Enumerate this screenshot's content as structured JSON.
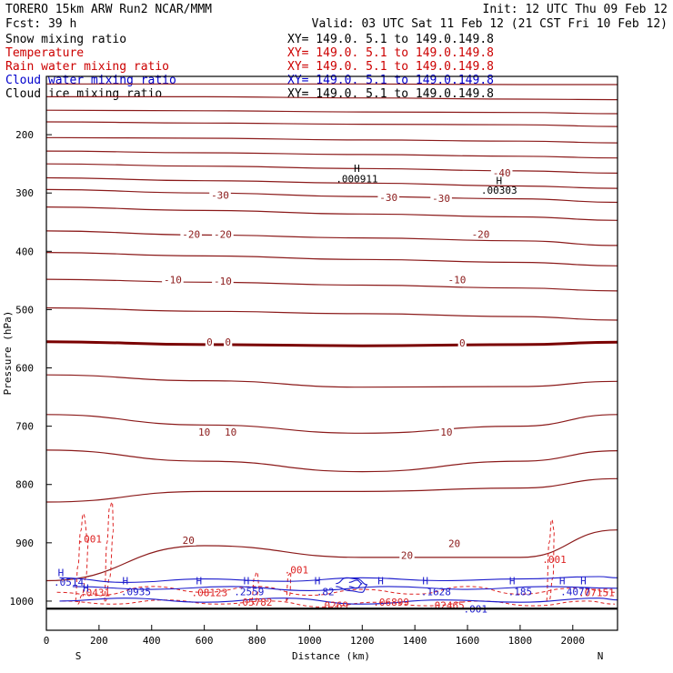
{
  "header": {
    "line1_left": "TORERO  15km ARW   Run2    NCAR/MMM",
    "line1_right": "Init: 12 UTC Thu 09 Feb 12",
    "line2_left": "Fcst:   39 h",
    "line2_right": "Valid: 03 UTC Sat 11 Feb 12 (21 CST Fri 10 Feb 12)"
  },
  "legend": [
    {
      "label": "Snow mixing ratio",
      "xy": "XY= 149.0.  5.1 to 149.0.149.8",
      "color": "#000000"
    },
    {
      "label": "Temperature",
      "xy": "XY= 149.0.  5.1 to 149.0.149.8",
      "color": "#cc0000"
    },
    {
      "label": "Rain water mixing ratio",
      "xy": "XY= 149.0.  5.1 to 149.0.149.8",
      "color": "#cc0000"
    },
    {
      "label": "Cloud water mixing ratio",
      "xy": "XY= 149.0.  5.1 to 149.0.149.8",
      "color": "#0000cc"
    },
    {
      "label": "Cloud ice mixing ratio",
      "xy": "XY= 149.0.  5.1 to 149.0.149.8",
      "color": "#000000"
    }
  ],
  "colors": {
    "temperature": "#8b1a1a",
    "freezing_line": "#7a0000",
    "rain": "#dd2222",
    "cloud_water": "#1a1acc",
    "ice": "#000000",
    "frame": "#000000"
  },
  "chart_data": {
    "type": "contour",
    "xlabel": "Distance (km)",
    "ylabel": "Pressure (hPa)",
    "xlim": [
      0,
      2170
    ],
    "ylim": [
      1050,
      100
    ],
    "x_ticks": [
      0,
      200,
      400,
      600,
      800,
      1000,
      1200,
      1400,
      1600,
      1800,
      2000
    ],
    "y_ticks": [
      200,
      300,
      400,
      500,
      600,
      700,
      800,
      900,
      1000
    ],
    "x_ends": {
      "left": "S",
      "right": "N"
    },
    "temperature_lines": [
      {
        "x": [
          0,
          600,
          1200,
          1800,
          2170
        ],
        "p": [
          113,
          113,
          113,
          114,
          114
        ]
      },
      {
        "x": [
          0,
          600,
          1200,
          1800,
          2170
        ],
        "p": [
          135,
          135,
          137,
          139,
          140
        ]
      },
      {
        "x": [
          0,
          600,
          1200,
          1800,
          2170
        ],
        "p": [
          158,
          159,
          161,
          162,
          164
        ]
      },
      {
        "x": [
          0,
          600,
          1200,
          1800,
          2170
        ],
        "p": [
          178,
          180,
          182,
          183,
          186
        ]
      },
      {
        "x": [
          0,
          600,
          1200,
          1800,
          2170
        ],
        "p": [
          205,
          206,
          209,
          211,
          214
        ]
      },
      {
        "x": [
          0,
          600,
          1200,
          1800,
          2170
        ],
        "p": [
          228,
          231,
          234,
          237,
          240
        ]
      },
      {
        "x": [
          0,
          600,
          1200,
          1800,
          2170
        ],
        "p": [
          250,
          254,
          258,
          262,
          266
        ]
      },
      {
        "x": [
          0,
          600,
          1200,
          1800,
          2170
        ],
        "p": [
          274,
          279,
          283,
          288,
          292
        ]
      },
      {
        "x": [
          0,
          600,
          1200,
          1800,
          2170
        ],
        "p": [
          294,
          300,
          306,
          310,
          316
        ]
      },
      {
        "x": [
          0,
          600,
          1200,
          1800,
          2170
        ],
        "p": [
          324,
          330,
          336,
          341,
          347
        ]
      },
      {
        "x": [
          0,
          600,
          1200,
          1800,
          2170
        ],
        "p": [
          365,
          372,
          377,
          382,
          390
        ]
      },
      {
        "x": [
          0,
          600,
          1200,
          1800,
          2170
        ],
        "p": [
          402,
          408,
          414,
          419,
          425
        ]
      },
      {
        "x": [
          0,
          600,
          1200,
          1800,
          2170
        ],
        "p": [
          448,
          453,
          458,
          463,
          468
        ]
      },
      {
        "x": [
          0,
          600,
          1200,
          1800,
          2170
        ],
        "p": [
          497,
          503,
          507,
          512,
          518
        ]
      },
      {
        "x": [
          0,
          600,
          1200,
          1800,
          2170
        ],
        "p": [
          555,
          560,
          562,
          560,
          556
        ]
      },
      {
        "x": [
          0,
          600,
          1200,
          1800,
          2170
        ],
        "p": [
          612,
          622,
          633,
          632,
          623
        ]
      },
      {
        "x": [
          0,
          600,
          1200,
          1800,
          2170
        ],
        "p": [
          680,
          698,
          712,
          700,
          680
        ]
      },
      {
        "x": [
          0,
          600,
          1200,
          1800,
          2170
        ],
        "p": [
          741,
          760,
          778,
          760,
          742
        ]
      },
      {
        "x": [
          0,
          600,
          1200,
          1800,
          2170
        ],
        "p": [
          830,
          812,
          812,
          806,
          790
        ]
      },
      {
        "x": [
          0,
          600,
          1200,
          1800,
          2170
        ],
        "p": [
          965,
          905,
          925,
          925,
          878
        ]
      }
    ],
    "freezing_line_index": 14,
    "temperature_labels": [
      {
        "text": "-40",
        "x": 1730,
        "p": 270
      },
      {
        "text": "-30",
        "x": 660,
        "p": 308
      },
      {
        "text": "-30",
        "x": 1300,
        "p": 312
      },
      {
        "text": "-30",
        "x": 1500,
        "p": 314
      },
      {
        "text": "-20",
        "x": 550,
        "p": 375
      },
      {
        "text": "-20",
        "x": 670,
        "p": 375
      },
      {
        "text": "-20",
        "x": 1650,
        "p": 375
      },
      {
        "text": "-10",
        "x": 480,
        "p": 453
      },
      {
        "text": "-10",
        "x": 670,
        "p": 456
      },
      {
        "text": "-10",
        "x": 1560,
        "p": 453
      },
      {
        "text": "0",
        "x": 620,
        "p": 560
      },
      {
        "text": "0",
        "x": 690,
        "p": 560
      },
      {
        "text": "0",
        "x": 1580,
        "p": 562
      },
      {
        "text": "10",
        "x": 600,
        "p": 715
      },
      {
        "text": "10",
        "x": 700,
        "p": 715
      },
      {
        "text": "10",
        "x": 1520,
        "p": 715
      },
      {
        "text": "20",
        "x": 540,
        "p": 900
      },
      {
        "text": "20",
        "x": 1370,
        "p": 926
      },
      {
        "text": "20",
        "x": 1550,
        "p": 906
      }
    ],
    "ice_maxima": [
      {
        "text": "H",
        "x": 1180,
        "p": 262
      },
      {
        "text": ".000911",
        "x": 1180,
        "p": 280
      },
      {
        "text": "H",
        "x": 1720,
        "p": 283
      },
      {
        "text": ".00303",
        "x": 1720,
        "p": 300
      }
    ],
    "rain_labels": [
      {
        "text": ".001",
        "x": 165,
        "p": 898
      },
      {
        "text": ".001",
        "x": 950,
        "p": 951
      },
      {
        "text": ".001",
        "x": 1930,
        "p": 933
      },
      {
        "text": ".0431",
        "x": 185,
        "p": 990
      },
      {
        "text": ".08123",
        "x": 620,
        "p": 990
      },
      {
        "text": ".05782",
        "x": 790,
        "p": 1006
      },
      {
        "text": ".0269",
        "x": 1090,
        "p": 1012
      },
      {
        "text": ".06899",
        "x": 1310,
        "p": 1006
      },
      {
        "text": ".02465",
        "x": 1520,
        "p": 1012
      },
      {
        "text": ".07151",
        "x": 2090,
        "p": 990
      }
    ],
    "cloud_labels": [
      {
        "text": "H",
        "x": 55,
        "p": 956
      },
      {
        "text": ".0514",
        "x": 85,
        "p": 972
      },
      {
        "text": "H",
        "x": 150,
        "p": 982
      },
      {
        "text": "H",
        "x": 300,
        "p": 970
      },
      {
        "text": ".0935",
        "x": 340,
        "p": 988
      },
      {
        "text": "H",
        "x": 580,
        "p": 970
      },
      {
        "text": "H",
        "x": 760,
        "p": 970
      },
      {
        "text": ".2559",
        "x": 770,
        "p": 988
      },
      {
        "text": "H",
        "x": 1030,
        "p": 970
      },
      {
        "text": ".82",
        "x": 1060,
        "p": 988
      },
      {
        "text": "H",
        "x": 1270,
        "p": 970
      },
      {
        "text": "H",
        "x": 1440,
        "p": 970
      },
      {
        "text": ".1628",
        "x": 1480,
        "p": 988
      },
      {
        "text": ".001",
        "x": 1630,
        "p": 1018
      },
      {
        "text": "H",
        "x": 1770,
        "p": 970
      },
      {
        "text": ".185",
        "x": 1800,
        "p": 988
      },
      {
        "text": "H",
        "x": 1960,
        "p": 970
      },
      {
        "text": ".4077",
        "x": 2010,
        "p": 988
      },
      {
        "text": "H",
        "x": 2040,
        "p": 970
      }
    ],
    "rain_contours": [
      {
        "x": [
          110,
          120,
          130,
          140,
          160,
          150,
          135,
          120,
          110
        ],
        "p": [
          1000,
          940,
          880,
          850,
          900,
          960,
          990,
          1005,
          1000
        ]
      },
      {
        "x": [
          220,
          230,
          240,
          250,
          255,
          240,
          225,
          220
        ],
        "p": [
          1000,
          900,
          840,
          830,
          880,
          960,
          1000,
          1000
        ]
      },
      {
        "x": [
          780,
          790,
          800,
          810,
          790,
          780
        ],
        "p": [
          1000,
          960,
          950,
          980,
          1005,
          1000
        ]
      },
      {
        "x": [
          910,
          920,
          930,
          925,
          910
        ],
        "p": [
          1000,
          955,
          950,
          990,
          1000
        ]
      },
      {
        "x": [
          1900,
          1910,
          1920,
          1930,
          1925,
          1910,
          1900
        ],
        "p": [
          1000,
          900,
          860,
          880,
          960,
          1000,
          1000
        ]
      },
      {
        "x": [
          40,
          200,
          400,
          600,
          800,
          1000,
          1200,
          1400,
          1600,
          1800,
          2000,
          2170
        ],
        "p": [
          985,
          990,
          975,
          985,
          975,
          990,
          980,
          988,
          975,
          988,
          978,
          985
        ]
      },
      {
        "x": [
          60,
          250,
          450,
          650,
          850,
          1050,
          1250,
          1450,
          1650,
          1850,
          2050,
          2160
        ],
        "p": [
          1000,
          1005,
          998,
          1005,
          1000,
          1010,
          1002,
          1008,
          1000,
          1008,
          1000,
          1005
        ]
      }
    ],
    "cloud_contours": [
      {
        "x": [
          50,
          300,
          600,
          900,
          1200,
          1500,
          1800,
          2100,
          2170
        ],
        "p": [
          960,
          968,
          962,
          966,
          960,
          965,
          962,
          958,
          960
        ]
      },
      {
        "x": [
          50,
          300,
          600,
          900,
          1200,
          1500,
          1800,
          2100,
          2170
        ],
        "p": [
          1000,
          995,
          1002,
          995,
          1005,
          998,
          1002,
          995,
          998
        ]
      },
      {
        "x": [
          100,
          400,
          700,
          1000,
          1300,
          1600,
          1900,
          2170
        ],
        "p": [
          975,
          980,
          975,
          982,
          975,
          980,
          975,
          978
        ]
      },
      {
        "x": [
          1100,
          1140,
          1180,
          1220,
          1200,
          1150,
          1100
        ],
        "p": [
          970,
          960,
          962,
          972,
          985,
          982,
          975
        ]
      },
      {
        "x": [
          1150,
          1180,
          1200,
          1180,
          1150
        ],
        "p": [
          968,
          964,
          970,
          978,
          975
        ]
      }
    ],
    "surface_line_p": 1013
  }
}
